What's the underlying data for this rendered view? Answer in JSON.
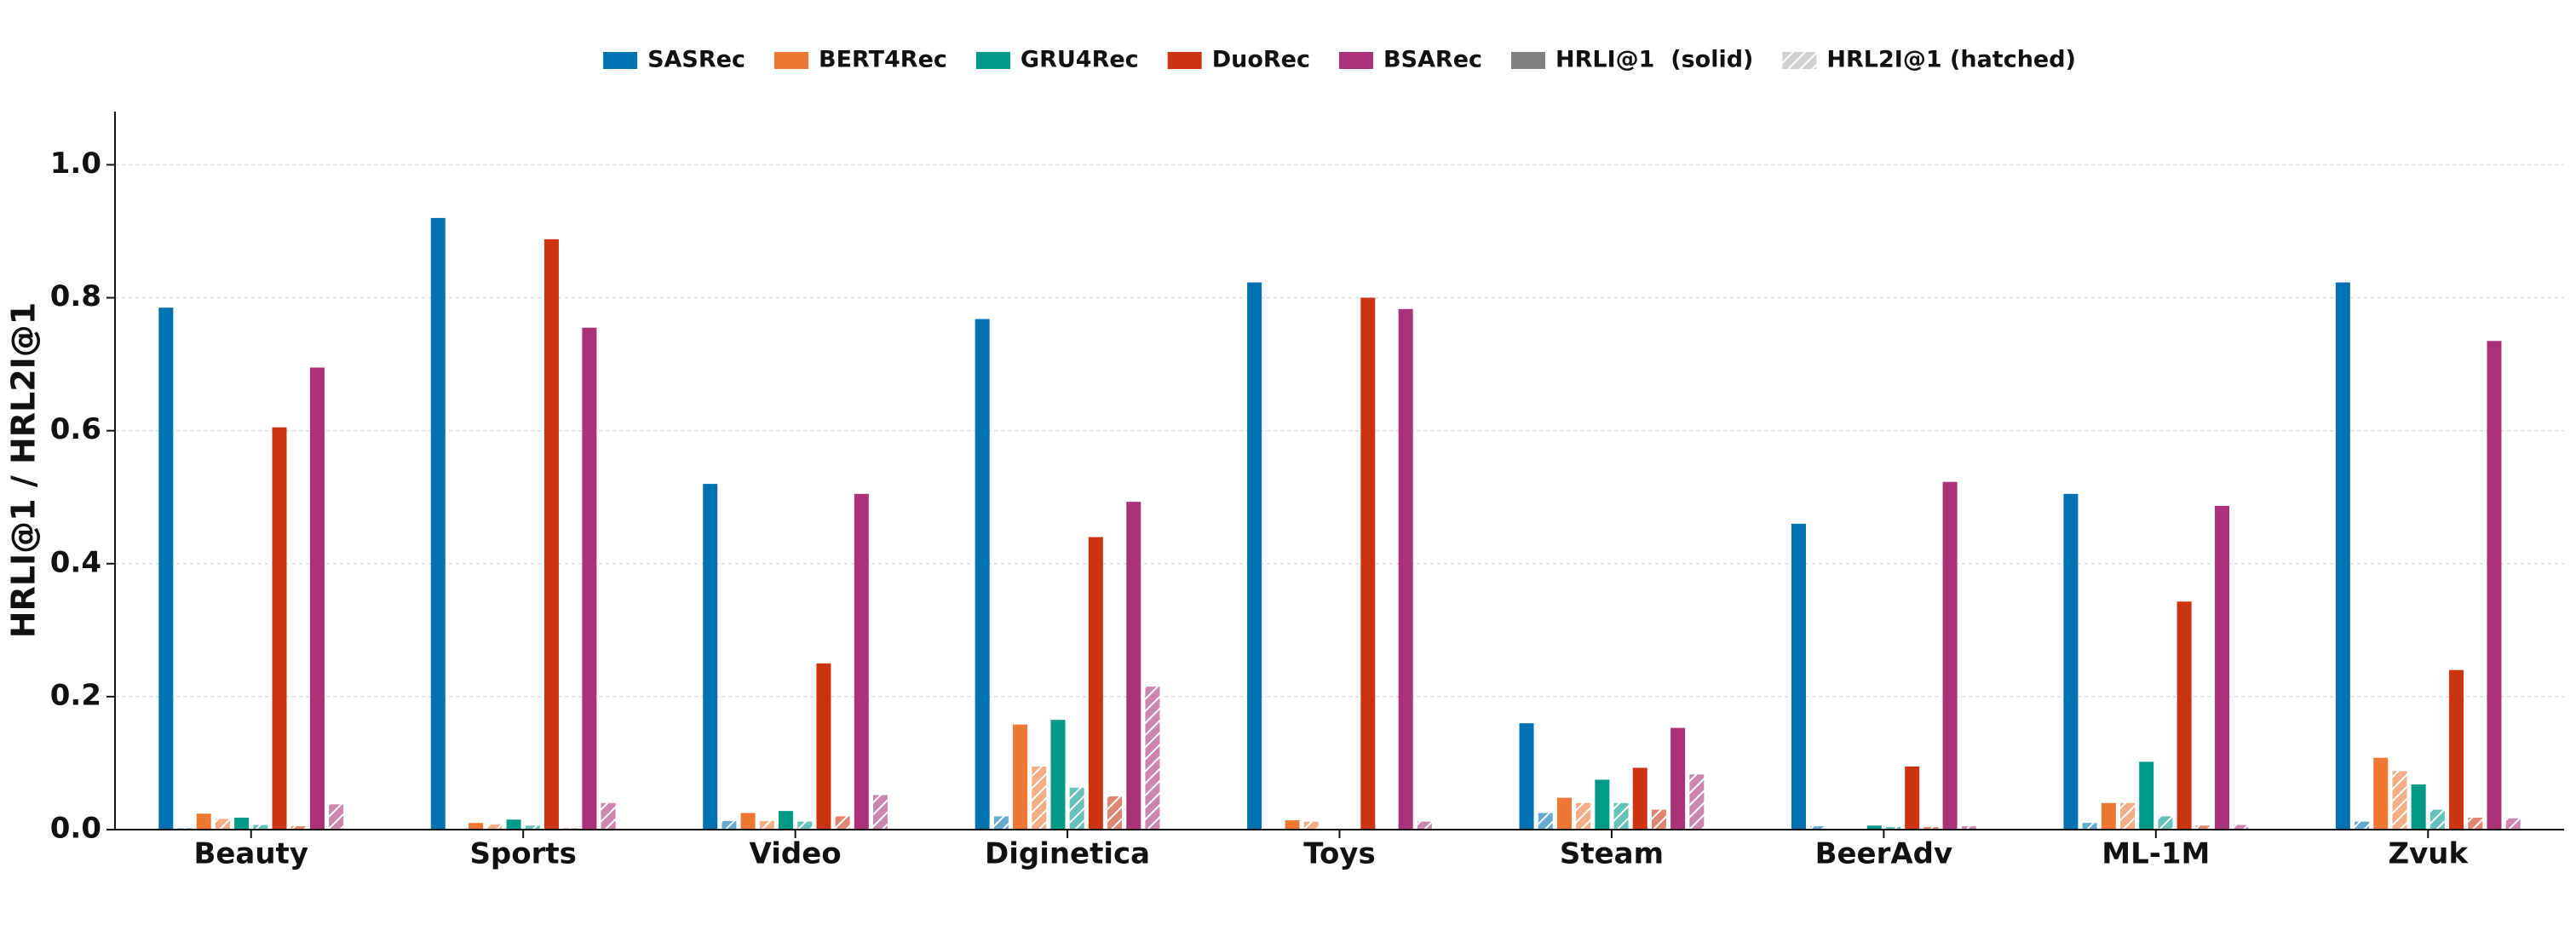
{
  "chart_data": {
    "type": "grouped_bar",
    "y_label": "HRLI@1 / HRL2I@1",
    "categories": [
      "Beauty",
      "Sports",
      "Video",
      "Diginetica",
      "Toys",
      "Steam",
      "BeerAdv",
      "ML-1M",
      "Zvuk"
    ],
    "series": [
      {
        "name": "SASRec",
        "color": "#0072b2",
        "values": [
          0.785,
          0.92,
          0.52,
          0.768,
          0.823,
          0.16,
          0.46,
          0.505,
          0.823
        ],
        "hatched_values": [
          0.002,
          0.001,
          0.013,
          0.02,
          0.0,
          0.025,
          0.005,
          0.01,
          0.012
        ]
      },
      {
        "name": "BERT4Rec",
        "color": "#ee7733",
        "values": [
          0.024,
          0.01,
          0.025,
          0.158,
          0.014,
          0.048,
          0.0,
          0.04,
          0.108
        ],
        "hatched_values": [
          0.016,
          0.008,
          0.013,
          0.095,
          0.012,
          0.04,
          0.0,
          0.04,
          0.088
        ]
      },
      {
        "name": "GRU4Rec",
        "color": "#009988",
        "values": [
          0.018,
          0.015,
          0.028,
          0.165,
          0.0,
          0.075,
          0.006,
          0.102,
          0.068
        ],
        "hatched_values": [
          0.007,
          0.006,
          0.012,
          0.063,
          0.0,
          0.04,
          0.004,
          0.02,
          0.03
        ]
      },
      {
        "name": "DuoRec",
        "color": "#cc3311",
        "values": [
          0.605,
          0.888,
          0.25,
          0.44,
          0.8,
          0.093,
          0.095,
          0.343,
          0.24
        ],
        "hatched_values": [
          0.005,
          0.002,
          0.02,
          0.05,
          0.0,
          0.03,
          0.004,
          0.006,
          0.018
        ]
      },
      {
        "name": "BSARec",
        "color": "#aa3377",
        "values": [
          0.695,
          0.755,
          0.505,
          0.493,
          0.783,
          0.153,
          0.523,
          0.487,
          0.735
        ],
        "hatched_values": [
          0.038,
          0.04,
          0.052,
          0.215,
          0.012,
          0.083,
          0.005,
          0.007,
          0.017
        ]
      }
    ],
    "legend_styles": [
      {
        "name": "HRLI@1  (solid)",
        "color": "#808080",
        "hatched": false
      },
      {
        "name": "HRL2I@1 (hatched)",
        "color": "#b0b0b0",
        "hatched": true
      }
    ],
    "ylim": [
      0,
      1.08
    ],
    "yticks": [
      {
        "value": 0,
        "label": "0.0"
      },
      0.2,
      0.4,
      0.6,
      0.8,
      {
        "value": 1,
        "label": "1.0"
      }
    ],
    "grid": true,
    "legend_position": "top"
  }
}
